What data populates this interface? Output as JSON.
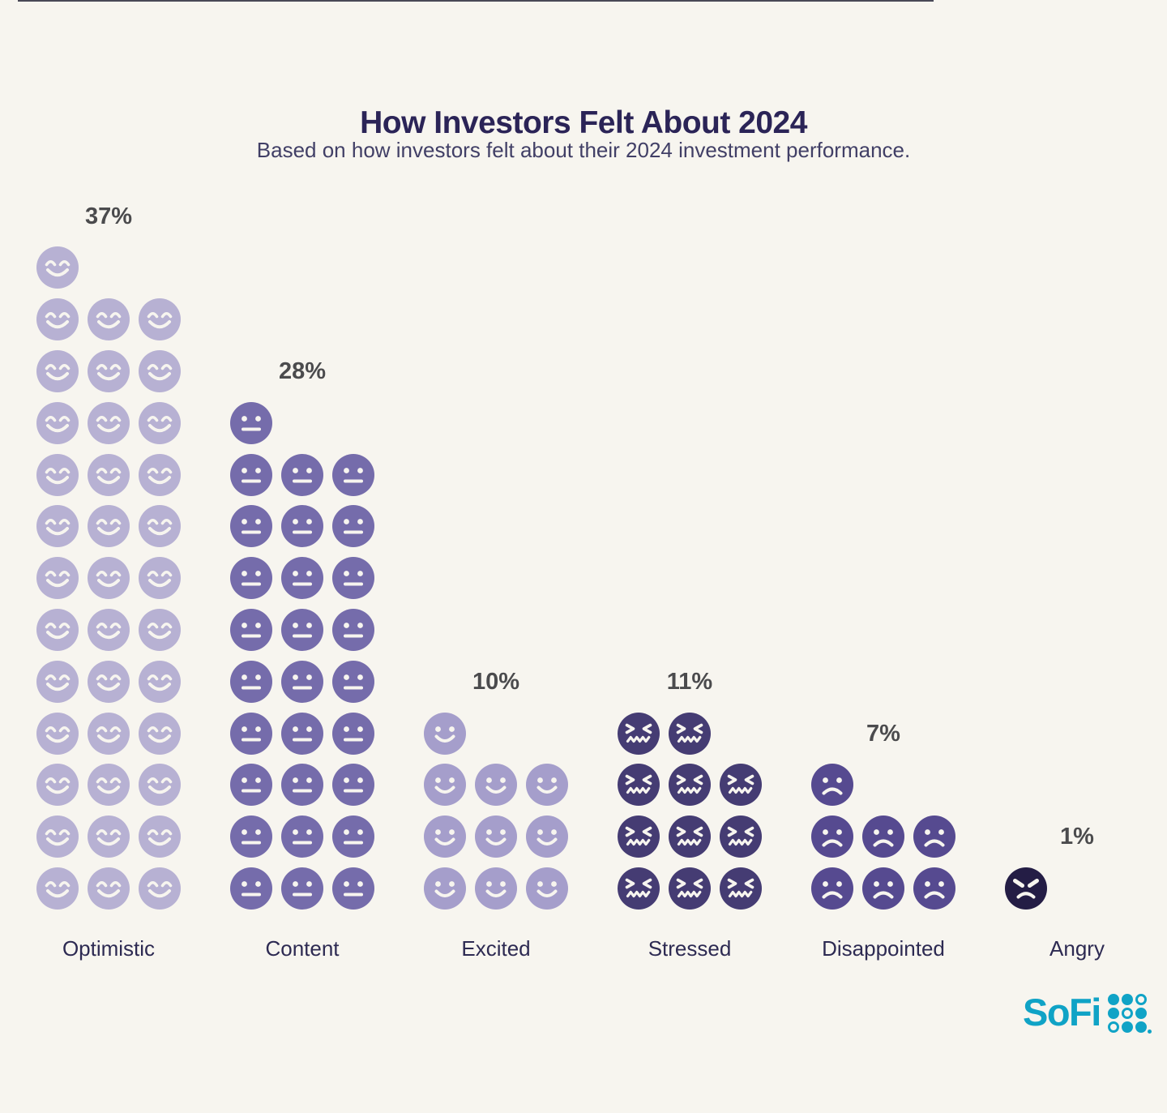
{
  "page": {
    "background_color": "#f7f5ef",
    "top_line_color": "#2a2a3c"
  },
  "header": {
    "title": "How Investors Felt About 2024",
    "subtitle": "Based on how investors felt about their 2024 investment performance."
  },
  "chart_data": {
    "type": "pictogram",
    "title": "How Investors Felt About 2024",
    "subtitle": "Based on how investors felt about their 2024 investment performance.",
    "unit": "1 face = 1 percent of investors",
    "columns_per_group": 3,
    "categories": [
      {
        "label": "Optimistic",
        "value": 37,
        "value_label": "37%",
        "mood_icon": "smiling-eyes-face",
        "color": "#b7b1d3"
      },
      {
        "label": "Content",
        "value": 28,
        "value_label": "28%",
        "mood_icon": "neutral-face",
        "color": "#756cab"
      },
      {
        "label": "Excited",
        "value": 10,
        "value_label": "10%",
        "mood_icon": "smiling-face",
        "color": "#a59ecb"
      },
      {
        "label": "Stressed",
        "value": 11,
        "value_label": "11%",
        "mood_icon": "stressed-face",
        "color": "#453c73"
      },
      {
        "label": "Disappointed",
        "value": 7,
        "value_label": "7%",
        "mood_icon": "frowning-face",
        "color": "#564a90"
      },
      {
        "label": "Angry",
        "value": 1,
        "value_label": "1%",
        "mood_icon": "angry-face",
        "color": "#241d45"
      }
    ],
    "value_label_color": "#4b4b4d",
    "category_label_color": "#2d2a52",
    "legend_position": "none",
    "grid": false
  },
  "footer": {
    "brand": "SoFi",
    "brand_color": "#10a3c6",
    "logo_grid": [
      "filled",
      "filled",
      "outline",
      "filled",
      "outline",
      "filled",
      "outline",
      "filled",
      "filled"
    ]
  }
}
